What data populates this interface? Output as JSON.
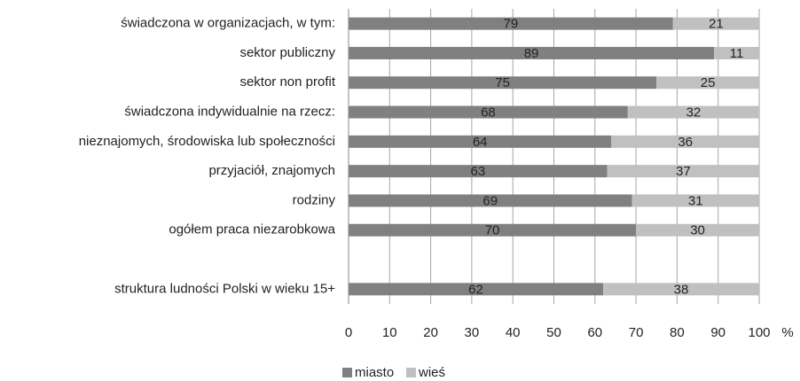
{
  "chart_data": {
    "type": "stacked_bar_horizontal",
    "categories": [
      "świadczona w organizacjach, w tym:",
      "sektor publiczny",
      "sektor non profit",
      "świadczona indywidualnie na rzecz:",
      "nieznajomych, środowiska lub społeczności",
      "przyjaciół, znajomych",
      "rodziny",
      "ogółem praca niezarobkowa",
      null,
      "struktura ludności Polski w wieku 15+"
    ],
    "series": [
      {
        "name": "miasto",
        "color": "#808080",
        "values": [
          79,
          89,
          75,
          68,
          64,
          63,
          69,
          70,
          null,
          62
        ]
      },
      {
        "name": "wieś",
        "color": "#c0c0c0",
        "values": [
          21,
          11,
          25,
          32,
          36,
          37,
          31,
          30,
          null,
          38
        ]
      }
    ],
    "xlabel": "%",
    "xlim": [
      0,
      100
    ],
    "xticks": [
      0,
      10,
      20,
      30,
      40,
      50,
      60,
      70,
      80,
      90,
      100
    ],
    "grid": true,
    "legend": "bottom"
  }
}
